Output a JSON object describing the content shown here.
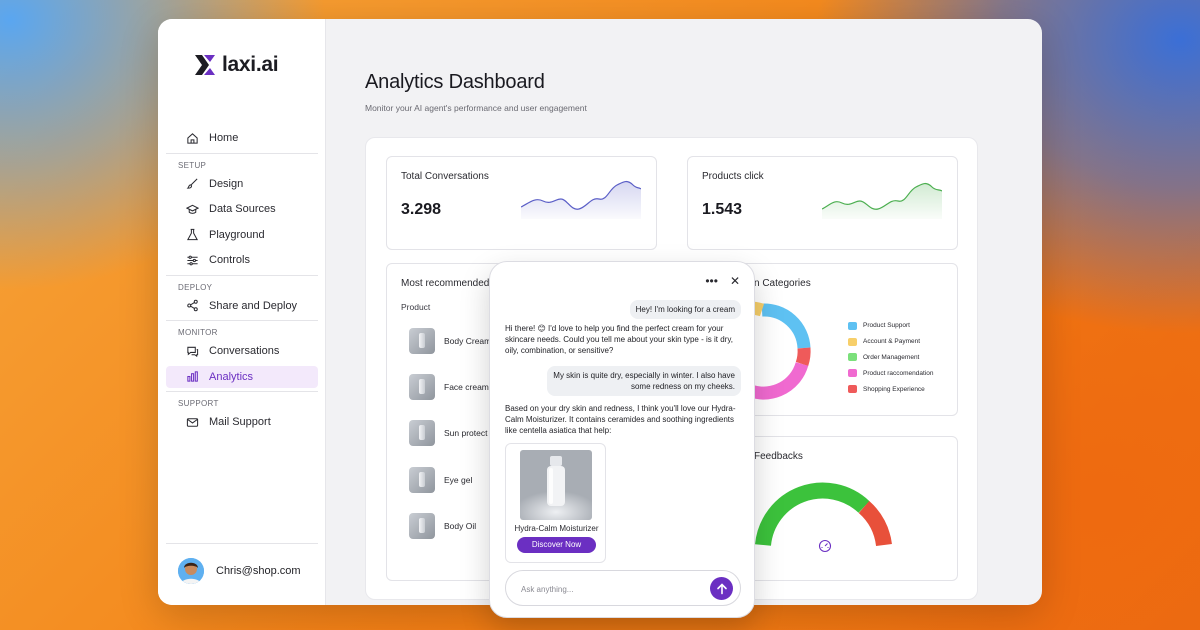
{
  "brand": {
    "name": "laxi.ai",
    "accent": "#6b2fc2"
  },
  "sidebar": {
    "home": {
      "label": "Home",
      "icon": "home-icon"
    },
    "sections": [
      {
        "title": "SETUP",
        "items": [
          {
            "label": "Design",
            "icon": "brush-icon"
          },
          {
            "label": "Data Sources",
            "icon": "graduation-cap-icon"
          },
          {
            "label": "Playground",
            "icon": "flask-icon"
          },
          {
            "label": "Controls",
            "icon": "sliders-icon"
          }
        ]
      },
      {
        "title": "DEPLOY",
        "items": [
          {
            "label": "Share and Deploy",
            "icon": "share-icon"
          }
        ]
      },
      {
        "title": "MONITOR",
        "items": [
          {
            "label": "Conversations",
            "icon": "chat-icon"
          },
          {
            "label": "Analytics",
            "icon": "bar-chart-icon",
            "active": true
          }
        ]
      },
      {
        "title": "SUPPORT",
        "items": [
          {
            "label": "Mail Support",
            "icon": "mail-icon"
          }
        ]
      }
    ],
    "user": {
      "email": "Chris@shop.com"
    }
  },
  "main": {
    "title": "Analytics Dashboard",
    "subtitle": "Monitor your AI agent's performance and user engagement"
  },
  "cards": {
    "total_conversations": {
      "title": "Total Conversations",
      "value": "3.298",
      "color": "#5b5fc7"
    },
    "products_click": {
      "title": "Products click",
      "value": "1.543",
      "color": "#4caf50"
    },
    "most_recommended": {
      "title": "Most recommended",
      "column": "Product",
      "products": [
        "Body Cream",
        "Face cream",
        "Sun protect",
        "Eye gel",
        "Body Oil"
      ]
    },
    "categories": {
      "title": "n Categories",
      "legend": [
        {
          "label": "Product Support",
          "color": "#5ec1f2"
        },
        {
          "label": "Account & Payment",
          "color": "#f7cf6a"
        },
        {
          "label": "Order Management",
          "color": "#7be07b"
        },
        {
          "label": "Product raccomendation",
          "color": "#f06ad0"
        },
        {
          "label": "Shopping Experience",
          "color": "#ef5a5a"
        }
      ]
    },
    "feedbacks": {
      "title": "Feedbacks"
    }
  },
  "chat": {
    "messages": {
      "user1": "Hey! I'm looking for a cream",
      "bot1": "Hi there! 😊 I'd love to help you find the perfect cream for your skincare needs. Could you tell me about your skin type - is it dry, oily, combination, or sensitive?",
      "user2_line1": "My skin is quite dry, especially in winter. I also have",
      "user2_line2": "some redness on my cheeks.",
      "bot2": "Based on your dry skin and redness, I think you'll love our Hydra-Calm Moisturizer. It contains ceramides and soothing ingredients like centella asiatica that help:"
    },
    "product": {
      "name": "Hydra-Calm Moisturizer",
      "cta": "Discover Now"
    },
    "input": {
      "placeholder": "Ask anything..."
    }
  }
}
